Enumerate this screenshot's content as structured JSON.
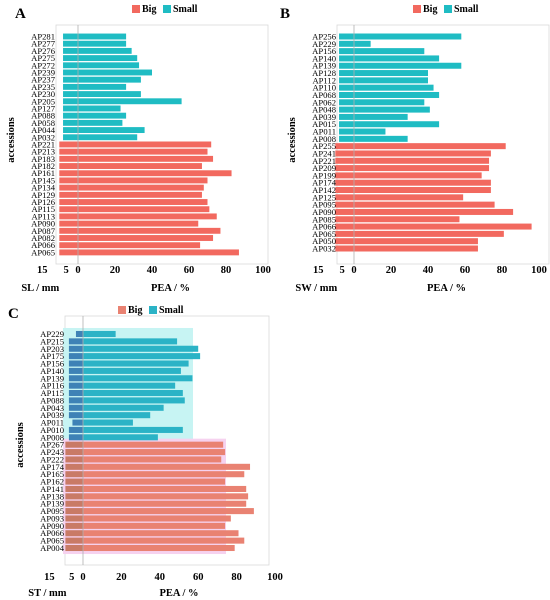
{
  "colors": {
    "big": "#f2695f",
    "small": "#1fbcc3",
    "panel_c_big": "#e98272",
    "panel_c_small": "#2bb3c6",
    "panel_c_bg_small": "#c7f4f3",
    "panel_c_bg_big": "#f6d2ef",
    "frame": "#d9d9d9",
    "midline": "#b0b0b0"
  },
  "chart_data": [
    {
      "panel": "A",
      "type": "bar",
      "orientation": "horizontal",
      "legend": [
        "Big",
        "Small"
      ],
      "legend_position": "top",
      "ylabel": "accessions",
      "xlabel_left": "SL / mm",
      "xlabel_right": "PEA / %",
      "x_tick_labels": [
        "15",
        "5",
        "0",
        "20",
        "40",
        "60",
        "80",
        "100"
      ],
      "xlim": [
        -15,
        100
      ],
      "categories": [
        "AP281",
        "AP277",
        "AP276",
        "AP275",
        "AP272",
        "AP239",
        "AP237",
        "AP235",
        "AP230",
        "AP205",
        "AP127",
        "AP088",
        "AP058",
        "AP044",
        "AP032",
        "AP221",
        "AP213",
        "AP183",
        "AP182",
        "AP161",
        "AP145",
        "AP134",
        "AP129",
        "AP126",
        "AP115",
        "AP113",
        "AP090",
        "AP087",
        "AP082",
        "AP066",
        "AP065"
      ],
      "group": [
        "Small",
        "Small",
        "Small",
        "Small",
        "Small",
        "Small",
        "Small",
        "Small",
        "Small",
        "Small",
        "Small",
        "Small",
        "Small",
        "Small",
        "Small",
        "Big",
        "Big",
        "Big",
        "Big",
        "Big",
        "Big",
        "Big",
        "Big",
        "Big",
        "Big",
        "Big",
        "Big",
        "Big",
        "Big",
        "Big",
        "Big"
      ],
      "values": [
        26,
        26,
        29,
        32,
        33,
        40,
        34,
        26,
        34,
        56,
        23,
        26,
        24,
        36,
        32,
        72,
        70,
        73,
        67,
        83,
        70,
        68,
        67,
        70,
        71,
        75,
        65,
        77,
        73,
        66,
        87
      ],
      "neg_values": [
        4,
        4,
        4,
        4,
        4,
        4,
        4,
        4,
        4,
        4,
        4,
        4,
        4,
        4,
        4,
        5,
        5,
        5,
        5,
        5,
        5,
        5,
        5,
        5,
        5,
        5,
        5,
        5,
        5,
        5,
        5
      ]
    },
    {
      "panel": "B",
      "type": "bar",
      "orientation": "horizontal",
      "legend": [
        "Big",
        "Small"
      ],
      "legend_position": "top",
      "ylabel": "accessions",
      "xlabel_left": "SW / mm",
      "xlabel_right": "PEA / %",
      "x_tick_labels": [
        "15",
        "5",
        "0",
        "20",
        "40",
        "60",
        "80",
        "100"
      ],
      "xlim": [
        -15,
        100
      ],
      "categories": [
        "AP256",
        "AP229",
        "AP156",
        "AP140",
        "AP139",
        "AP128",
        "AP112",
        "AP110",
        "AP068",
        "AP062",
        "AP048",
        "AP039",
        "AP015",
        "AP011",
        "AP008",
        "AP255",
        "AP241",
        "AP221",
        "AP209",
        "AP199",
        "AP174",
        "AP142",
        "AP125",
        "AP095",
        "AP090",
        "AP085",
        "AP066",
        "AP065",
        "AP050",
        "AP032"
      ],
      "group": [
        "Small",
        "Small",
        "Small",
        "Small",
        "Small",
        "Small",
        "Small",
        "Small",
        "Small",
        "Small",
        "Small",
        "Small",
        "Small",
        "Small",
        "Small",
        "Big",
        "Big",
        "Big",
        "Big",
        "Big",
        "Big",
        "Big",
        "Big",
        "Big",
        "Big",
        "Big",
        "Big",
        "Big",
        "Big",
        "Big"
      ],
      "values": [
        58,
        9,
        38,
        46,
        58,
        40,
        40,
        43,
        46,
        38,
        41,
        29,
        46,
        17,
        29,
        82,
        74,
        73,
        73,
        69,
        74,
        74,
        59,
        76,
        86,
        57,
        96,
        81,
        67,
        67
      ],
      "neg_values": [
        4,
        4,
        4,
        4,
        4,
        4,
        4,
        4,
        4,
        4,
        4,
        4,
        4,
        4,
        4,
        5,
        5,
        5,
        5,
        5,
        5,
        5,
        5,
        5,
        5,
        5,
        5,
        5,
        5,
        5
      ]
    },
    {
      "panel": "C",
      "type": "bar",
      "orientation": "horizontal",
      "legend": [
        "Big",
        "Small"
      ],
      "legend_position": "top",
      "ylabel": "accessions",
      "xlabel_left": "ST / mm",
      "xlabel_right": "PEA / %",
      "x_tick_labels": [
        "15",
        "5",
        "0",
        "20",
        "40",
        "60",
        "80",
        "100"
      ],
      "xlim": [
        -15,
        100
      ],
      "categories": [
        "AP229",
        "AP215",
        "AP203",
        "AP175",
        "AP156",
        "AP140",
        "AP139",
        "AP116",
        "AP115",
        "AP088",
        "AP043",
        "AP039",
        "AP011",
        "AP010",
        "AP008",
        "AP267",
        "AP243",
        "AP222",
        "AP174",
        "AP165",
        "AP162",
        "AP141",
        "AP138",
        "AP139",
        "AP095",
        "AP093",
        "AP090",
        "AP066",
        "AP065",
        "AP004"
      ],
      "group": [
        "Small",
        "Small",
        "Small",
        "Small",
        "Small",
        "Small",
        "Small",
        "Small",
        "Small",
        "Small",
        "Small",
        "Small",
        "Small",
        "Small",
        "Small",
        "Big",
        "Big",
        "Big",
        "Big",
        "Big",
        "Big",
        "Big",
        "Big",
        "Big",
        "Big",
        "Big",
        "Big",
        "Big",
        "Big",
        "Big"
      ],
      "values": [
        17,
        49,
        60,
        61,
        55,
        51,
        57,
        48,
        52,
        53,
        42,
        35,
        26,
        52,
        39,
        73,
        74,
        72,
        87,
        84,
        74,
        85,
        86,
        85,
        89,
        77,
        74,
        81,
        84,
        79
      ],
      "neg_values": [
        2,
        4,
        4,
        4,
        4,
        4,
        4,
        4,
        4,
        4,
        4,
        4,
        3,
        4,
        4,
        5,
        5,
        5,
        5,
        5,
        5,
        5,
        5,
        5,
        5,
        5,
        5,
        5,
        5,
        5
      ]
    }
  ]
}
